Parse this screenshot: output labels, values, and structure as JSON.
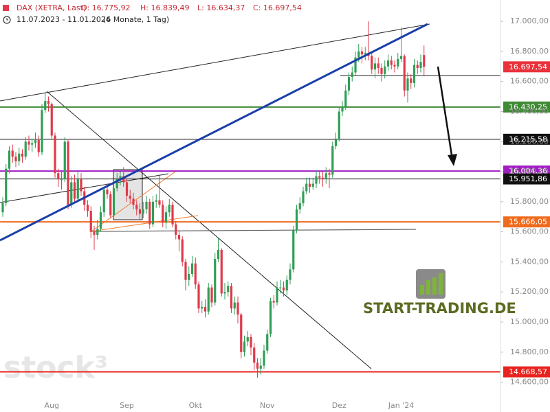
{
  "chart_data": {
    "type": "candlestick",
    "header": {
      "instrument": "DAX (XETRA, Last)",
      "open": "O: 16.775,92",
      "high": "H: 16.839,49",
      "low": "L: 16.634,37",
      "close": "C: 16.697,54",
      "range": "11.07.2023 - 11.01.2024",
      "period": "(6 Monate, 1 Tag)"
    },
    "watermark": "stock³",
    "logo": "START-TRADING.DE",
    "up_color": "#2f9e55",
    "down_color": "#e0394b",
    "categories": [
      null,
      null,
      null,
      null,
      null,
      null,
      null,
      null,
      null,
      null,
      null,
      null,
      null,
      null,
      null,
      "Aug",
      null,
      null,
      null,
      null,
      null,
      null,
      null,
      null,
      null,
      null,
      null,
      null,
      null,
      null,
      null,
      null,
      null,
      null,
      null,
      null,
      null,
      null,
      "Sep",
      null,
      null,
      null,
      null,
      null,
      null,
      null,
      null,
      null,
      null,
      null,
      null,
      null,
      null,
      null,
      null,
      null,
      null,
      null,
      null,
      "Okt",
      null,
      null,
      null,
      null,
      null,
      null,
      null,
      null,
      null,
      null,
      null,
      null,
      null,
      null,
      null,
      null,
      null,
      null,
      null,
      null,
      null,
      "Nov",
      null,
      null,
      null,
      null,
      null,
      null,
      null,
      null,
      null,
      null,
      null,
      null,
      null,
      null,
      null,
      null,
      null,
      null,
      null,
      null,
      null,
      "Dez",
      null,
      null,
      null,
      null,
      null,
      null,
      null,
      null,
      null,
      null,
      null,
      null,
      null,
      null,
      null,
      null,
      null,
      null,
      "Jan '24",
      null,
      null,
      null,
      null,
      null,
      null,
      null
    ],
    "open": [
      15730,
      15790,
      16020,
      16140,
      16100,
      16070,
      16120,
      16100,
      16200,
      16180,
      16190,
      16210,
      16130,
      16410,
      16470,
      16450,
      16240,
      15990,
      15950,
      15950,
      16200,
      15780,
      15930,
      15820,
      15950,
      15870,
      15780,
      15740,
      15600,
      15580,
      15620,
      15730,
      15880,
      15850,
      15710,
      15890,
      15950,
      15970,
      15930,
      15840,
      15820,
      15780,
      15750,
      15720,
      15750,
      15800,
      15650,
      15800,
      15810,
      15780,
      15660,
      15730,
      15780,
      15650,
      15580,
      15550,
      15400,
      15280,
      15320,
      15390,
      15250,
      15090,
      15100,
      15070,
      15230,
      15130,
      15420,
      15480,
      15190,
      15200,
      15240,
      15090,
      15130,
      15050,
      14800,
      14870,
      14900,
      14830,
      14730,
      14690,
      14710,
      14810,
      14920,
      15140,
      15130,
      15230,
      15230,
      15210,
      15280,
      15350,
      15610,
      15750,
      15790,
      15870,
      15920,
      15900,
      15920,
      15970,
      15960,
      15950,
      15990,
      15980,
      16170,
      16220,
      16400,
      16430,
      16540,
      16630,
      16660,
      16760,
      16800,
      16780,
      16790,
      16770,
      16680,
      16720,
      16690,
      16650,
      16700,
      16740,
      16710,
      16700,
      16750,
      16770,
      16540,
      16620,
      16590,
      16710,
      16690,
      16775.92
    ],
    "high": [
      15830,
      16050,
      16170,
      16180,
      16130,
      16160,
      16150,
      16230,
      16240,
      16220,
      16260,
      16240,
      16450,
      16530,
      16500,
      16460,
      16260,
      16020,
      16010,
      16230,
      16210,
      15970,
      15980,
      16000,
      15990,
      15900,
      15810,
      15770,
      15640,
      15680,
      15770,
      15900,
      15920,
      15870,
      15930,
      15990,
      16000,
      16030,
      15950,
      15880,
      15860,
      15810,
      15790,
      15800,
      15840,
      15820,
      15840,
      15850,
      15980,
      15810,
      15770,
      15820,
      15800,
      15670,
      15610,
      15570,
      15420,
      15370,
      15440,
      15430,
      15270,
      15140,
      15150,
      15260,
      15250,
      15460,
      15560,
      15490,
      15260,
      15270,
      15260,
      15170,
      15170,
      15060,
      14910,
      14940,
      14920,
      14860,
      14760,
      14760,
      14850,
      14950,
      15160,
      15180,
      15270,
      15280,
      15270,
      15310,
      15390,
      15640,
      15780,
      15830,
      15900,
      15960,
      15960,
      15960,
      16010,
      16000,
      16000,
      16030,
      16020,
      16200,
      16260,
      16430,
      16470,
      16580,
      16660,
      16700,
      16800,
      16850,
      16830,
      16830,
      17000,
      16800,
      16760,
      16760,
      16720,
      16740,
      16780,
      16770,
      16740,
      16790,
      16960,
      16780,
      16660,
      16650,
      16750,
      16740,
      16780,
      16839.49
    ],
    "low": [
      15700,
      15770,
      15990,
      16060,
      16030,
      16040,
      16060,
      16080,
      16140,
      16130,
      16160,
      16100,
      16110,
      16390,
      16400,
      16220,
      15960,
      15900,
      15880,
      15930,
      15750,
      15760,
      15800,
      15800,
      15840,
      15740,
      15700,
      15560,
      15480,
      15550,
      15600,
      15700,
      15820,
      15690,
      15700,
      15870,
      15910,
      15900,
      15800,
      15790,
      15750,
      15710,
      15680,
      15690,
      15720,
      15620,
      15630,
      15760,
      15760,
      15630,
      15620,
      15700,
      15630,
      15550,
      15470,
      15370,
      15210,
      15240,
      15300,
      15220,
      15060,
      15060,
      15030,
      15050,
      15100,
      15110,
      15400,
      15170,
      15150,
      15170,
      15060,
      15050,
      14990,
      14760,
      14770,
      14840,
      14780,
      14680,
      14630,
      14650,
      14690,
      14790,
      14900,
      15090,
      15110,
      15190,
      15170,
      15180,
      15250,
      15330,
      15590,
      15720,
      15770,
      15850,
      15860,
      15880,
      15890,
      15920,
      15900,
      15920,
      15890,
      15960,
      16150,
      16200,
      16370,
      16410,
      16510,
      16600,
      16640,
      16730,
      16720,
      16740,
      16740,
      16650,
      16620,
      16650,
      16600,
      16620,
      16670,
      16680,
      16660,
      16680,
      16730,
      16500,
      16460,
      16550,
      16560,
      16650,
      16660,
      16634.37
    ],
    "close": [
      15790,
      16020,
      16140,
      16100,
      16070,
      16120,
      16100,
      16200,
      16180,
      16190,
      16210,
      16130,
      16410,
      16470,
      16450,
      16240,
      15990,
      15950,
      15950,
      16200,
      15780,
      15930,
      15820,
      15950,
      15870,
      15780,
      15740,
      15600,
      15580,
      15620,
      15730,
      15880,
      15850,
      15710,
      15890,
      15950,
      15970,
      15930,
      15840,
      15820,
      15780,
      15750,
      15720,
      15750,
      15800,
      15650,
      15800,
      15810,
      15780,
      15660,
      15730,
      15780,
      15650,
      15580,
      15550,
      15400,
      15280,
      15320,
      15390,
      15250,
      15090,
      15100,
      15070,
      15230,
      15130,
      15420,
      15480,
      15190,
      15200,
      15240,
      15090,
      15130,
      15050,
      14800,
      14870,
      14900,
      14830,
      14730,
      14690,
      14710,
      14810,
      14920,
      15140,
      15130,
      15230,
      15230,
      15210,
      15280,
      15350,
      15610,
      15750,
      15790,
      15870,
      15920,
      15900,
      15920,
      15970,
      15960,
      15950,
      15990,
      15980,
      16170,
      16220,
      16400,
      16430,
      16540,
      16630,
      16660,
      16760,
      16800,
      16780,
      16790,
      16770,
      16680,
      16720,
      16690,
      16650,
      16700,
      16740,
      16710,
      16700,
      16750,
      16770,
      16540,
      16620,
      16590,
      16710,
      16690,
      16730,
      16697.54
    ],
    "ylim": [
      14493,
      17142
    ],
    "yticks": [
      {
        "value": 14600,
        "label": "14.600,00"
      },
      {
        "value": 14800,
        "label": "14.800,00"
      },
      {
        "value": 15000,
        "label": "15.000,00"
      },
      {
        "value": 15200,
        "label": "15.200,00"
      },
      {
        "value": 15400,
        "label": "15.400,00"
      },
      {
        "value": 15600,
        "label": "15.600,00"
      },
      {
        "value": 15800,
        "label": "15.800,00"
      },
      {
        "value": 16000,
        "label": "16.000,00"
      },
      {
        "value": 16200,
        "label": "16.200,00"
      },
      {
        "value": 16400,
        "label": "16.400,00"
      },
      {
        "value": 16600,
        "label": "16.600,00"
      },
      {
        "value": 16800,
        "label": "16.800,00"
      },
      {
        "value": 17000,
        "label": "17.000,00"
      }
    ],
    "last_price": {
      "value": 16697.54,
      "label": "16.697,54",
      "color": "#e8323c"
    },
    "levels": [
      {
        "value": 16430.25,
        "label": "16.430,25",
        "color": "#3f8a34"
      },
      {
        "value": 16215.58,
        "label": "16.215,58",
        "color": "#111111"
      },
      {
        "value": 16004.36,
        "label": "16.004,36",
        "color": "#a21cc4"
      },
      {
        "value": 15951.86,
        "label": "15.951,86",
        "color": "#111111"
      },
      {
        "value": 15666.05,
        "label": "15.666,05",
        "color": "#f06a1c"
      },
      {
        "value": 14668.57,
        "label": "14.668,57",
        "color": "#e8231f"
      }
    ]
  }
}
